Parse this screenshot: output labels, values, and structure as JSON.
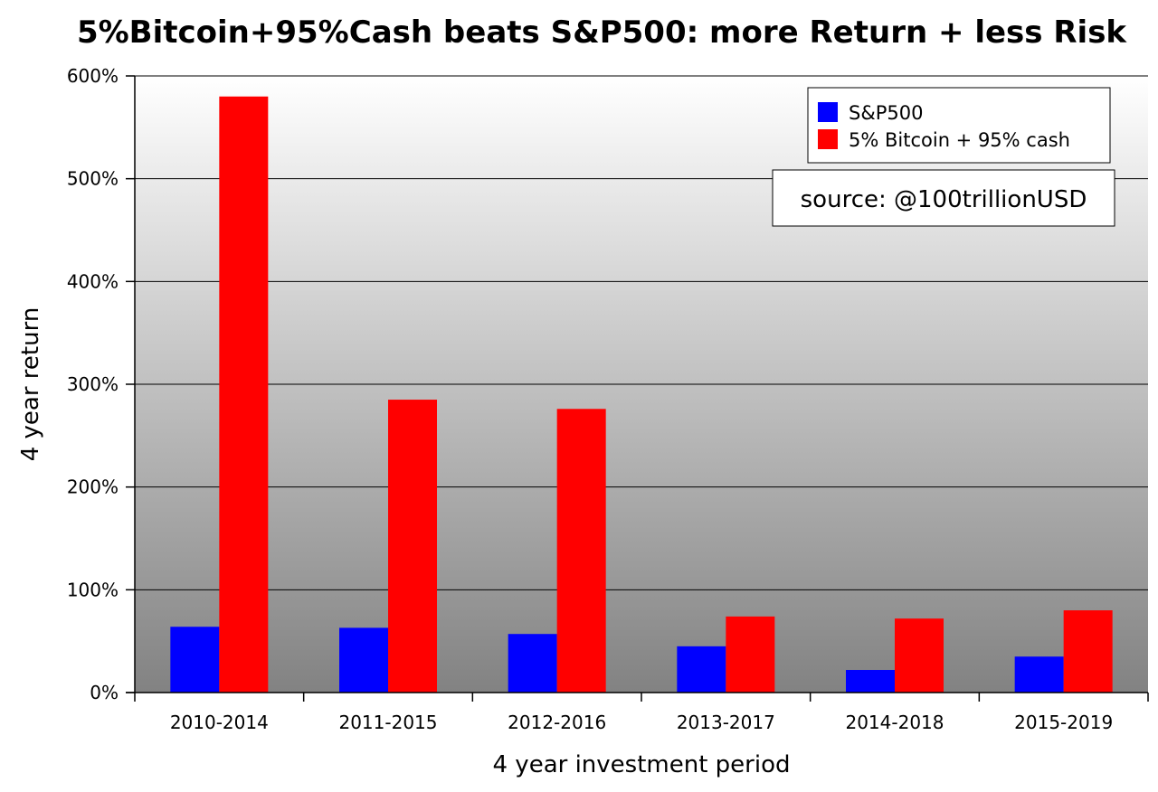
{
  "chart_data": {
    "type": "bar",
    "title": "5%Bitcoin+95%Cash beats S&P500: more Return + less Risk",
    "xlabel": "4 year investment period",
    "ylabel": "4 year return",
    "categories": [
      "2010-2014",
      "2011-2015",
      "2012-2016",
      "2013-2017",
      "2014-2018",
      "2015-2019"
    ],
    "series": [
      {
        "name": "S&P500",
        "color": "#0000ff",
        "values": [
          64,
          63,
          57,
          45,
          22,
          35
        ]
      },
      {
        "name": "5% Bitcoin + 95% cash",
        "color": "#ff0000",
        "values": [
          580,
          285,
          276,
          74,
          72,
          80
        ]
      }
    ],
    "ylim": [
      0,
      600
    ],
    "yticks": [
      0,
      100,
      200,
      300,
      400,
      500,
      600
    ],
    "ytick_labels": [
      "0%",
      "100%",
      "200%",
      "300%",
      "400%",
      "500%",
      "600%"
    ],
    "grid": true,
    "legend_position": "top-right",
    "annotation": "source: @100trillionUSD"
  }
}
